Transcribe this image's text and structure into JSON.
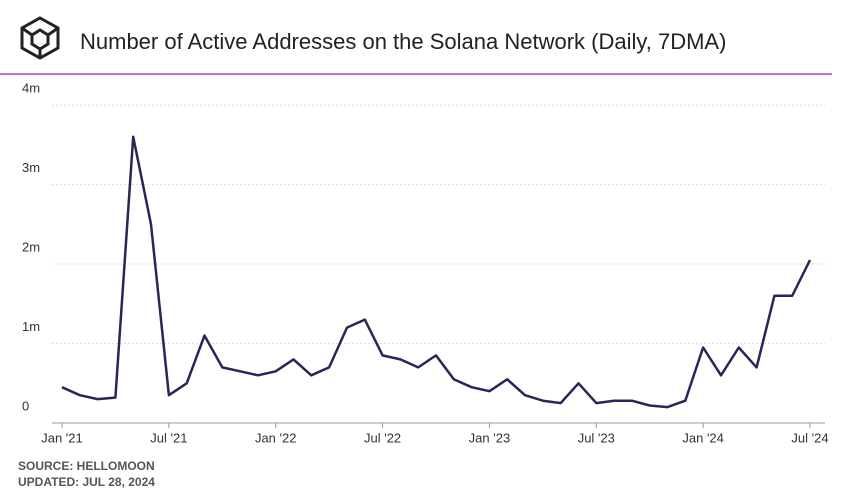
{
  "chart_data": {
    "type": "line",
    "title": "Number of Active Addresses on the Solana Network (Daily, 7DMA)",
    "source": "SOURCE: HELLOMOON",
    "updated": "UPDATED: JUL 28, 2024",
    "x": [
      "2021-01",
      "2021-02",
      "2021-03",
      "2021-04",
      "2021-05",
      "2021-06",
      "2021-07",
      "2021-08",
      "2021-09",
      "2021-10",
      "2021-11",
      "2021-12",
      "2022-01",
      "2022-02",
      "2022-03",
      "2022-04",
      "2022-05",
      "2022-06",
      "2022-07",
      "2022-08",
      "2022-09",
      "2022-10",
      "2022-11",
      "2022-12",
      "2023-01",
      "2023-02",
      "2023-03",
      "2023-04",
      "2023-05",
      "2023-06",
      "2023-07",
      "2023-08",
      "2023-09",
      "2023-10",
      "2023-11",
      "2023-12",
      "2024-01",
      "2024-02",
      "2024-03",
      "2024-04",
      "2024-05",
      "2024-06",
      "2024-07"
    ],
    "series": [
      {
        "name": "Active addresses",
        "color": "#2b2557",
        "values": [
          450000,
          350000,
          300000,
          320000,
          3600000,
          2500000,
          350000,
          500000,
          1100000,
          700000,
          650000,
          600000,
          650000,
          800000,
          600000,
          700000,
          1200000,
          1300000,
          850000,
          800000,
          700000,
          850000,
          550000,
          450000,
          400000,
          550000,
          350000,
          280000,
          250000,
          500000,
          250000,
          280000,
          280000,
          220000,
          200000,
          280000,
          950000,
          600000,
          950000,
          700000,
          1600000,
          1600000,
          2050000
        ]
      }
    ],
    "ylim": [
      0,
      4000000
    ],
    "yticks": [
      0,
      {
        "value": 1000000,
        "label": "1m"
      },
      {
        "value": 2000000,
        "label": "2m"
      },
      {
        "value": 3000000,
        "label": "3m"
      },
      {
        "value": 4000000,
        "label": "4m"
      }
    ],
    "xticks": [
      {
        "value": "2021-01",
        "label": "Jan '21"
      },
      {
        "value": "2021-07",
        "label": "Jul '21"
      },
      {
        "value": "2022-01",
        "label": "Jan '22"
      },
      {
        "value": "2022-07",
        "label": "Jul '22"
      },
      {
        "value": "2023-01",
        "label": "Jan '23"
      },
      {
        "value": "2023-07",
        "label": "Jul '23"
      },
      {
        "value": "2024-01",
        "label": "Jan '24"
      },
      {
        "value": "2024-07",
        "label": "Jul '24"
      }
    ],
    "grid": true
  }
}
